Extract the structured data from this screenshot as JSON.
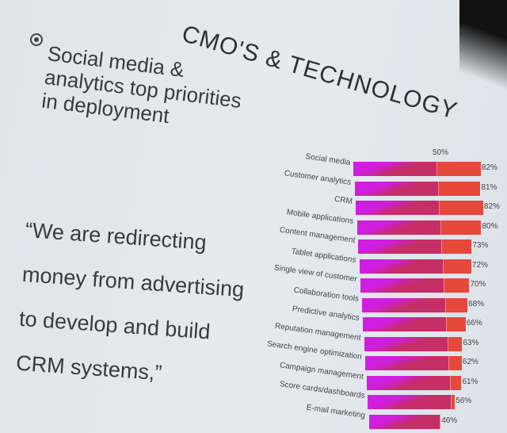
{
  "slide": {
    "title": "CMO'S & TECHNOLOGY",
    "bullet_icon": "circle-bullet-icon",
    "heading": "Social media & analytics top priorities in deployment",
    "quote_lines": [
      "“We are redirecting",
      "money from advertising",
      "to develop and build",
      "CRM systems,”"
    ]
  },
  "chart_data": {
    "type": "bar",
    "orientation": "horizontal",
    "categories": [
      "Social media",
      "Customer analytics",
      "CRM",
      "Mobile applications",
      "Content management",
      "Tablet applications",
      "Single view of customer",
      "Collaboration tools",
      "Predictive analytics",
      "Reputation management",
      "Search engine optimization",
      "Campaign management",
      "Score cards/dashboards",
      "E-mail marketing"
    ],
    "values": [
      82,
      81,
      82,
      80,
      73,
      72,
      70,
      68,
      66,
      63,
      62,
      61,
      56,
      46
    ],
    "value_labels": [
      "82%",
      "81%",
      "82%",
      "80%",
      "73%",
      "72%",
      "70%",
      "68%",
      "66%",
      "63%",
      "62%",
      "61%",
      "56%",
      "46%"
    ],
    "reference_marker": {
      "value": 50,
      "label": "50%"
    },
    "colors": {
      "gradient_start": "#d01ee0",
      "below_marker": "#c52e66",
      "above_marker": "#e6483c"
    },
    "grid": false,
    "legend": "none"
  }
}
